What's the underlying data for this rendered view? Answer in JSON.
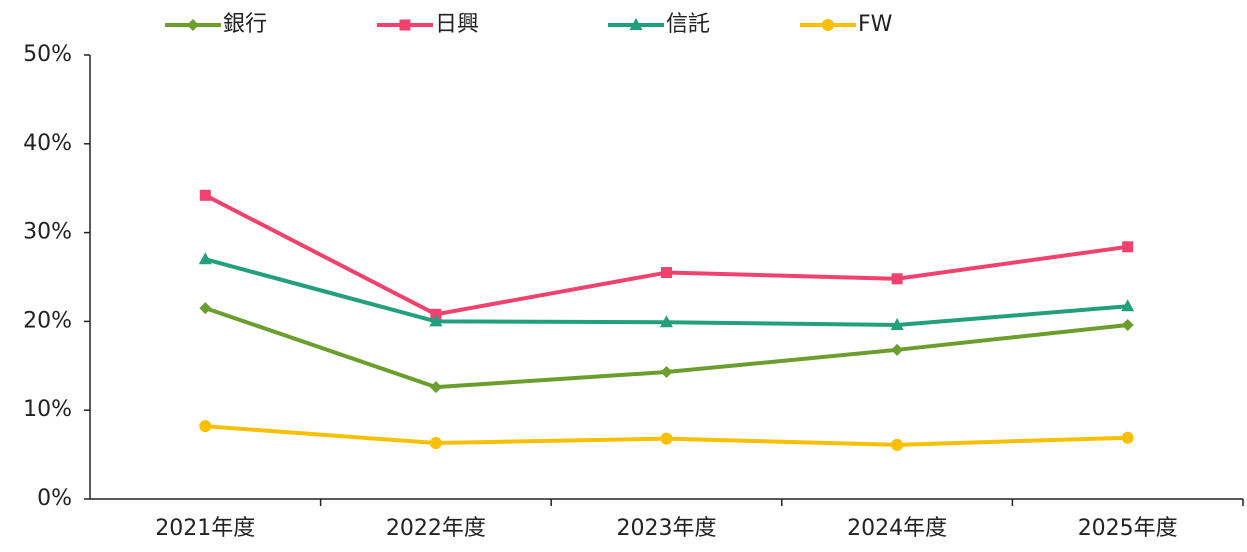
{
  "chart_data": {
    "type": "line",
    "categories": [
      "2021年度",
      "2022年度",
      "2023年度",
      "2024年度",
      "2025年度"
    ],
    "series": [
      {
        "name": "銀行",
        "color": "#6b9e2c",
        "marker": "diamond",
        "values": [
          21.5,
          12.6,
          14.3,
          16.8,
          19.6
        ]
      },
      {
        "name": "日興",
        "color": "#f0426c",
        "marker": "square",
        "values": [
          34.2,
          20.8,
          25.5,
          24.8,
          28.4
        ]
      },
      {
        "name": "信託",
        "color": "#22a07e",
        "marker": "triangle",
        "values": [
          27.0,
          20.0,
          19.9,
          19.6,
          21.7
        ]
      },
      {
        "name": "FW",
        "color": "#f8c000",
        "marker": "circle",
        "values": [
          8.2,
          6.3,
          6.8,
          6.1,
          6.9
        ]
      }
    ],
    "ylim": [
      0,
      50
    ],
    "yticks": [
      {
        "value": 0,
        "label": "0%"
      },
      {
        "value": 10,
        "label": "10%"
      },
      {
        "value": 20,
        "label": "20%"
      },
      {
        "value": 30,
        "label": "30%"
      },
      {
        "value": 40,
        "label": "40%"
      },
      {
        "value": 50,
        "label": "50%"
      }
    ],
    "grid": false,
    "legend": "top"
  }
}
